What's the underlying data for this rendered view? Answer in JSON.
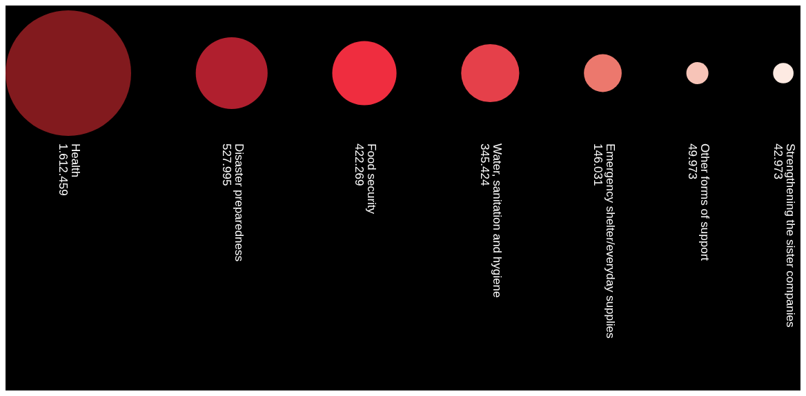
{
  "chart_data": {
    "type": "other",
    "categories": [
      "Health",
      "Disaster preparedness",
      "Food security",
      "Water, sanitation and hygiene",
      "Emergency shelter/everyday supplies",
      "Other forms of support",
      "Strengthening the sister companies"
    ],
    "values": [
      1612459,
      527995,
      422269,
      345424,
      146031,
      49973,
      42973
    ],
    "value_labels": [
      "1.612.459",
      "527.995",
      "422.269",
      "345.424",
      "146.031",
      "49.973",
      "42.973"
    ],
    "colors": [
      "#821a1e",
      "#b01f2e",
      "#ef2d3f",
      "#e5404a",
      "#ec786d",
      "#f7c4b8",
      "#fdeae2"
    ]
  }
}
